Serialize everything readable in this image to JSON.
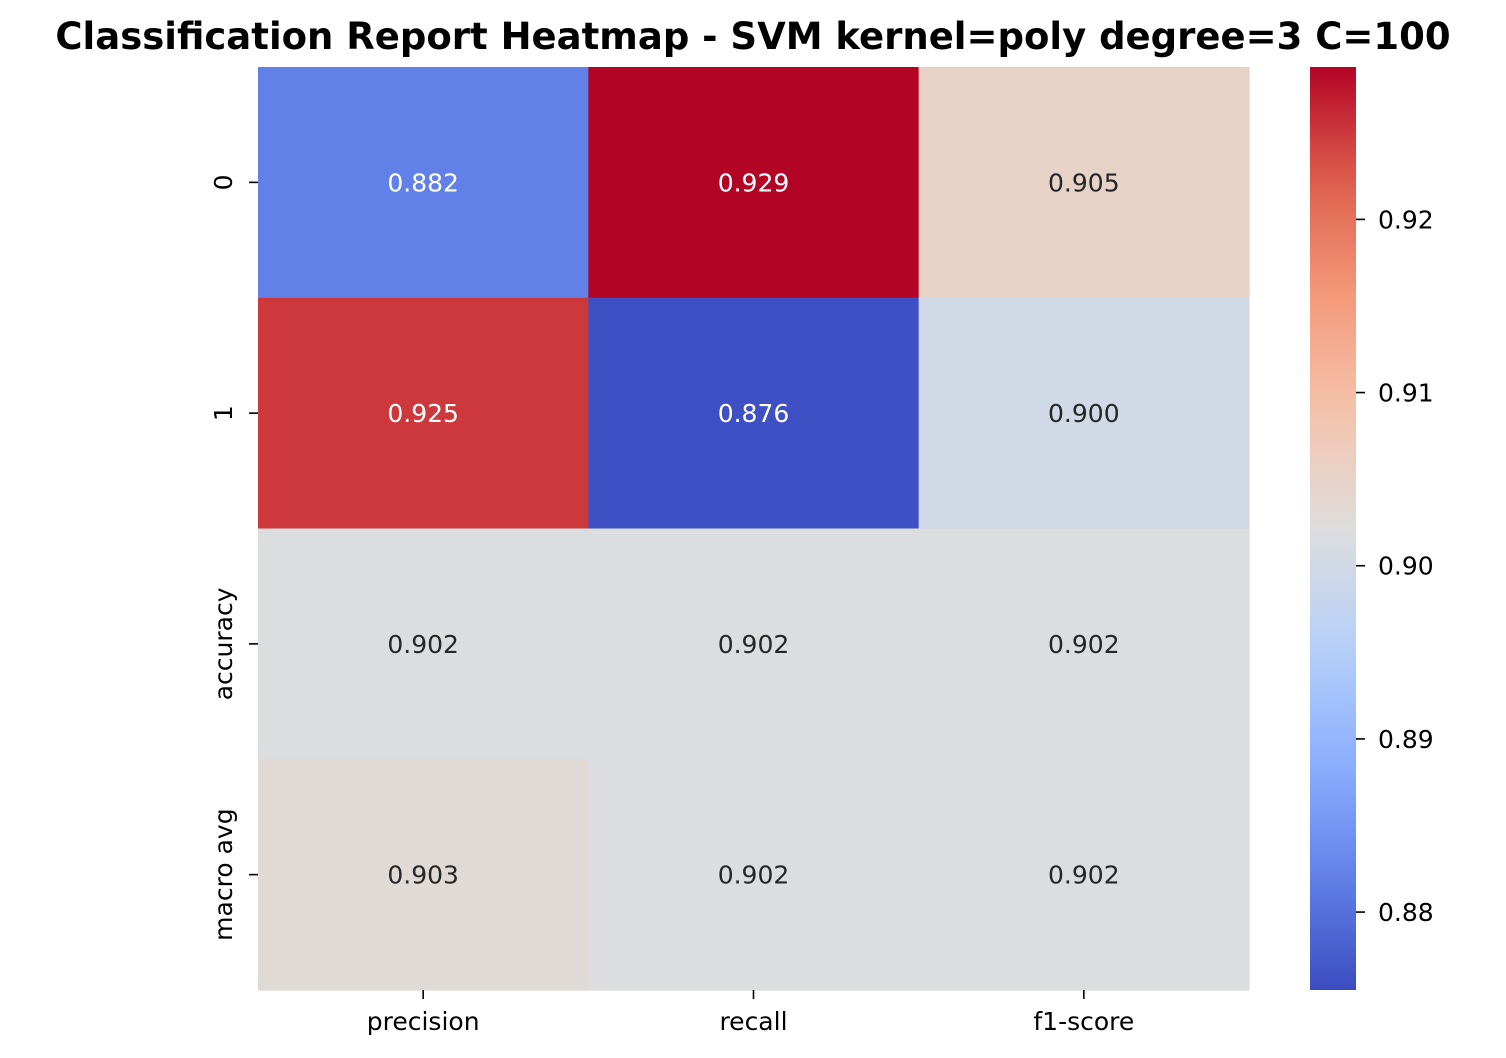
{
  "chart_data": {
    "type": "heatmap",
    "title": "Classification Report Heatmap - SVM kernel=poly degree=3 C=100",
    "xlabel": "",
    "ylabel": "",
    "columns": [
      "precision",
      "recall",
      "f1-score"
    ],
    "rows": [
      "0",
      "1",
      "accuracy",
      "macro avg"
    ],
    "values": [
      [
        0.882,
        0.929,
        0.905
      ],
      [
        0.925,
        0.876,
        0.9
      ],
      [
        0.902,
        0.902,
        0.902
      ],
      [
        0.903,
        0.902,
        0.902
      ]
    ],
    "cell_labels": [
      [
        "0.882",
        "0.929",
        "0.905"
      ],
      [
        "0.925",
        "0.876",
        "0.900"
      ],
      [
        "0.902",
        "0.902",
        "0.902"
      ],
      [
        "0.903",
        "0.902",
        "0.902"
      ]
    ],
    "colormap": "coolwarm",
    "vmin": 0.8755,
    "vmax": 0.9288,
    "colorbar": {
      "ticks": [
        0.88,
        0.89,
        0.9,
        0.91,
        0.92
      ],
      "tick_labels": [
        "0.88",
        "0.89",
        "0.90",
        "0.91",
        "0.92"
      ]
    },
    "grid": false,
    "legend": "colorbar-right"
  }
}
